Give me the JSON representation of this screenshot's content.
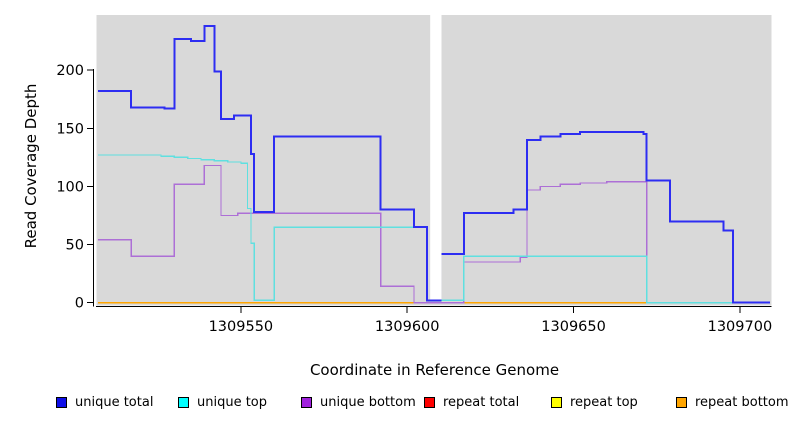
{
  "chart_data": {
    "type": "line",
    "subtype": "step",
    "title": "",
    "xlabel": "Coordinate in Reference Genome",
    "ylabel": "Read Coverage Depth",
    "xlim": [
      1309506.6,
      1309709.5
    ],
    "ylim": [
      -2.5,
      247.5
    ],
    "x_ticks": [
      1309550,
      1309600,
      1309650,
      1309700
    ],
    "y_ticks": [
      0,
      50,
      100,
      150,
      200
    ],
    "grid": false,
    "legend_position": "bottom",
    "plot_bg_color": "#d9d9d9",
    "axis_color": "#000000",
    "text_color": "#000000",
    "gap_region": {
      "x_start": 1309606.9,
      "x_end": 1309610.3,
      "color": "#ffffff"
    },
    "series": [
      {
        "name": "unique total",
        "color": "#0f0fe8",
        "line_color": "#2d2df2",
        "line_width": 2,
        "points": [
          [
            1309507,
            182
          ],
          [
            1309517,
            168
          ],
          [
            1309527,
            167
          ],
          [
            1309530,
            227
          ],
          [
            1309535,
            225
          ],
          [
            1309539,
            238
          ],
          [
            1309542,
            199
          ],
          [
            1309544,
            158
          ],
          [
            1309548,
            161
          ],
          [
            1309553,
            128
          ],
          [
            1309554,
            78
          ],
          [
            1309560,
            143
          ],
          [
            1309592,
            80
          ],
          [
            1309602,
            65
          ],
          [
            1309606,
            2
          ],
          [
            1309610,
            42
          ],
          [
            1309617,
            77
          ],
          [
            1309632,
            80
          ],
          [
            1309636,
            140
          ],
          [
            1309640,
            143
          ],
          [
            1309646,
            145
          ],
          [
            1309652,
            147
          ],
          [
            1309671,
            145
          ],
          [
            1309672,
            105
          ],
          [
            1309679,
            70
          ],
          [
            1309695,
            62
          ],
          [
            1309698,
            0
          ],
          [
            1309709,
            0
          ]
        ]
      },
      {
        "name": "unique top",
        "color": "#00ffff",
        "line_color": "#5fe0e0",
        "line_width": 1.3,
        "points": [
          [
            1309507,
            127
          ],
          [
            1309526,
            126
          ],
          [
            1309530,
            125
          ],
          [
            1309534,
            124
          ],
          [
            1309538,
            123
          ],
          [
            1309542,
            122
          ],
          [
            1309546,
            121
          ],
          [
            1309550,
            120
          ],
          [
            1309552,
            81
          ],
          [
            1309553,
            51
          ],
          [
            1309554,
            2
          ],
          [
            1309560,
            65
          ],
          [
            1309606,
            2
          ],
          [
            1309617,
            40
          ],
          [
            1309672,
            0
          ],
          [
            1309709,
            0
          ]
        ]
      },
      {
        "name": "unique bottom",
        "color": "#a021dd",
        "line_color": "#ad6fd6",
        "line_width": 1.3,
        "points": [
          [
            1309507,
            54
          ],
          [
            1309517,
            40
          ],
          [
            1309530,
            102
          ],
          [
            1309539,
            118
          ],
          [
            1309544,
            75
          ],
          [
            1309549,
            77
          ],
          [
            1309592,
            14
          ],
          [
            1309602,
            0
          ],
          [
            1309617,
            35
          ],
          [
            1309634,
            39
          ],
          [
            1309636,
            97
          ],
          [
            1309640,
            100
          ],
          [
            1309646,
            102
          ],
          [
            1309652,
            103
          ],
          [
            1309660,
            104
          ],
          [
            1309672,
            0
          ],
          [
            1309709,
            0
          ]
        ]
      },
      {
        "name": "repeat total",
        "color": "#ff0000",
        "line_color": "#ee2222",
        "line_width": 1.3,
        "points": [
          [
            1309507,
            0
          ],
          [
            1309709,
            0
          ]
        ]
      },
      {
        "name": "repeat top",
        "color": "#ffff00",
        "line_color": "#f2f200",
        "line_width": 1.3,
        "points": [
          [
            1309507,
            0
          ],
          [
            1309709,
            0
          ]
        ]
      },
      {
        "name": "repeat bottom",
        "color": "#ffa500",
        "line_color": "#ffa500",
        "line_width": 1.5,
        "points": [
          [
            1309507,
            0
          ],
          [
            1309709,
            0
          ]
        ]
      }
    ]
  },
  "legend_item_lefts": [
    56,
    178,
    301,
    424,
    551,
    676
  ]
}
